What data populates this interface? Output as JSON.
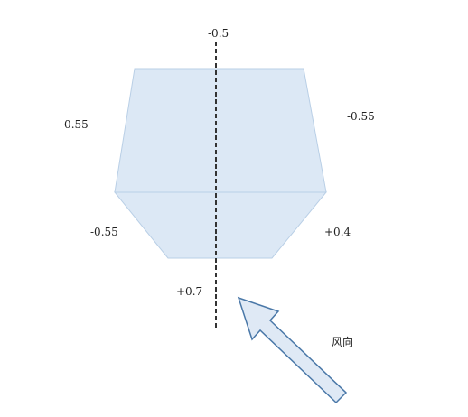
{
  "diagram": {
    "labels": {
      "top": "-0.5",
      "left_upper": "-0.55",
      "right_upper": "-0.55",
      "left_lower": "-0.55",
      "right_lower": "+0.4",
      "bottom": "+0.7"
    },
    "wind_direction_label": "风向",
    "colors": {
      "building_fill": "#dce8f5",
      "building_stroke": "#b9cfe6",
      "arrow_fill": "#dfe9f5",
      "arrow_stroke": "#4a78a8",
      "axis_line": "#333333"
    }
  }
}
